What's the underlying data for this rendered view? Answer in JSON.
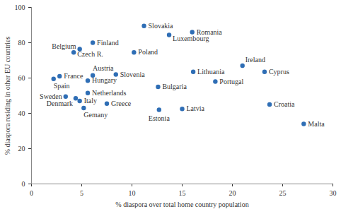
{
  "chart_data": {
    "type": "scatter",
    "x_label": "% diaspora over total home country population",
    "y_label": "% diaspora residing in other EU countries",
    "labels": [
      "Slovakia",
      "Romania",
      "Luxembourg",
      "Finland",
      "Belgium",
      "Czech R.",
      "Poland",
      "Ireland",
      "Cyprus",
      "Lithuania",
      "Austria",
      "Slovenia",
      "France",
      "Spain",
      "Hungary",
      "Portugal",
      "Bulgaria",
      "Netherlands",
      "Sweden",
      "Denmark",
      "Italy",
      "Greece",
      "Croatia",
      "Gemany",
      "Estonia",
      "Latvia",
      "Malta"
    ],
    "x": [
      11.2,
      16.0,
      13.7,
      6.1,
      4.8,
      4.2,
      10.2,
      21.0,
      23.2,
      16.1,
      6.1,
      8.4,
      2.8,
      2.2,
      5.6,
      18.3,
      12.6,
      5.6,
      3.4,
      4.4,
      4.8,
      7.5,
      23.7,
      5.2,
      12.7,
      15.0,
      27.1
    ],
    "values": [
      89.5,
      86,
      84.4,
      80,
      76.4,
      74.5,
      74.5,
      67,
      63.5,
      63.5,
      61.5,
      62,
      61,
      59.5,
      58.5,
      58,
      55,
      51.5,
      49.5,
      48.5,
      47,
      45.5,
      45,
      43,
      42,
      42.5,
      34
    ],
    "color": "#2f6eb5",
    "marker": "circle",
    "xlim": [
      0,
      30
    ],
    "xticks": [
      0,
      5,
      10,
      15,
      20,
      25,
      30
    ],
    "ylim": [
      0,
      100
    ],
    "yticks": [
      0,
      20,
      40,
      60,
      80,
      100
    ],
    "grid": false
  }
}
